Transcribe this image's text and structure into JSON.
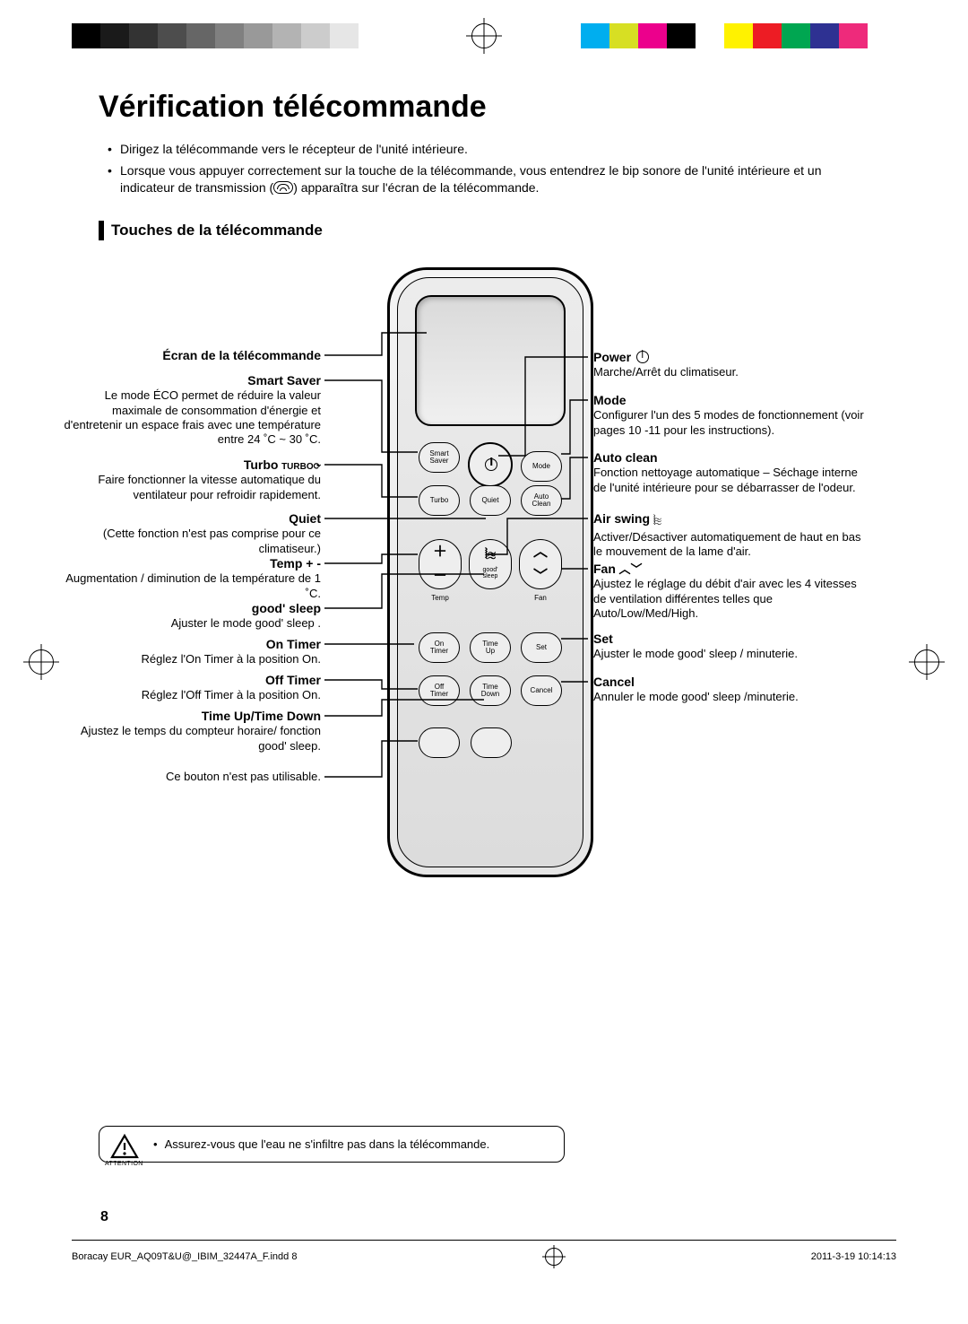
{
  "reg_colors_bw": [
    "#000000",
    "#1a1a1a",
    "#333333",
    "#4d4d4d",
    "#666666",
    "#808080",
    "#999999",
    "#b3b3b3",
    "#cccccc",
    "#e6e6e6",
    "#ffffff"
  ],
  "reg_colors_cl": [
    "#00aeef",
    "#d7df23",
    "#ec008c",
    "#000000",
    "#ffffff",
    "#fff200",
    "#ed1c24",
    "#00a651",
    "#2e3192",
    "#ee2a7b",
    "#ffffff"
  ],
  "title": "Vérification télécommande",
  "bullets": [
    "Dirigez la télécommande vers le récepteur de l'unité intérieure.",
    "Lorsque vous appuyer correctement sur la touche de la télécommande, vous entendrez le bip sonore de l'unité intérieure et un indicateur de transmission ( ) apparaîtra sur l'écran de la télécommande."
  ],
  "section_heading": "Touches de la télécommande",
  "left_callouts": {
    "screen": {
      "title": "Écran de la télécommande"
    },
    "smart": {
      "title": "Smart Saver",
      "desc": "Le mode ÉCO permet de réduire la valeur maximale de consommation d'énergie et d'entretenir un espace frais avec une température entre 24 ˚C ~ 30 ˚C."
    },
    "turbo": {
      "title": "Turbo",
      "desc": "Faire fonctionner la vitesse automatique du ventilateur pour refroidir rapidement."
    },
    "quiet": {
      "title": "Quiet",
      "desc": "(Cette fonction n'est pas comprise pour ce climatiseur.)"
    },
    "temp": {
      "title": "Temp + -",
      "desc": "Augmentation / diminution de la température de 1 ˚C."
    },
    "good": {
      "title": "good' sleep",
      "desc": "Ajuster le mode good' sleep ."
    },
    "onTimer": {
      "title": "On Timer",
      "desc": "Réglez l'On Timer à la position On."
    },
    "offTimer": {
      "title": "Off Timer",
      "desc": "Réglez l'Off Timer à la position On."
    },
    "timeUD": {
      "title": "Time Up/Time Down",
      "desc": "Ajustez le temps du compteur horaire/ fonction good' sleep."
    },
    "unused": {
      "desc": "Ce bouton n'est pas utilisable."
    }
  },
  "right_callouts": {
    "power": {
      "title": "Power",
      "desc": "Marche/Arrêt du climatiseur."
    },
    "mode": {
      "title": "Mode",
      "desc": "Configurer l'un des 5 modes de fonctionnement (voir pages 10 -11 pour les instructions)."
    },
    "auto": {
      "title": "Auto clean",
      "desc": "Fonction nettoyage automatique – Séchage interne de l'unité intérieure pour se débarrasser de l'odeur."
    },
    "swing": {
      "title": "Air swing",
      "desc": "Activer/Désactiver automatiquement de haut en bas le mouvement de la lame d'air."
    },
    "fan": {
      "title": "Fan",
      "desc": "Ajustez le réglage du débit d'air avec les 4 vitesses de ventilation différentes telles que Auto/Low/Med/High."
    },
    "set": {
      "title": "Set",
      "desc": "Ajuster le mode good' sleep / minuterie."
    },
    "cancel": {
      "title": "Cancel",
      "desc": "Annuler le mode good' sleep /minuterie."
    }
  },
  "remote_buttons": {
    "smart": "Smart\nSaver",
    "mode": "Mode",
    "turbo": "Turbo",
    "quiet": "Quiet",
    "autoclean": "Auto\nClean",
    "temp": "Temp",
    "goodsleep": "good'\nsleep",
    "fan": "Fan",
    "ontimer": "On\nTimer",
    "timeup": "Time\nUp",
    "set": "Set",
    "offtimer": "Off\nTimer",
    "timedown": "Time\nDown",
    "cancel": "Cancel"
  },
  "attention": {
    "label": "ATTENTION",
    "text": "Assurez-vous que l'eau ne s'infiltre pas dans la télécommande."
  },
  "page_number": "8",
  "footer_left": "Boracay EUR_AQ09T&U@_IBIM_32447A_F.indd   8",
  "footer_right": "2011-3-19   10:14:13"
}
